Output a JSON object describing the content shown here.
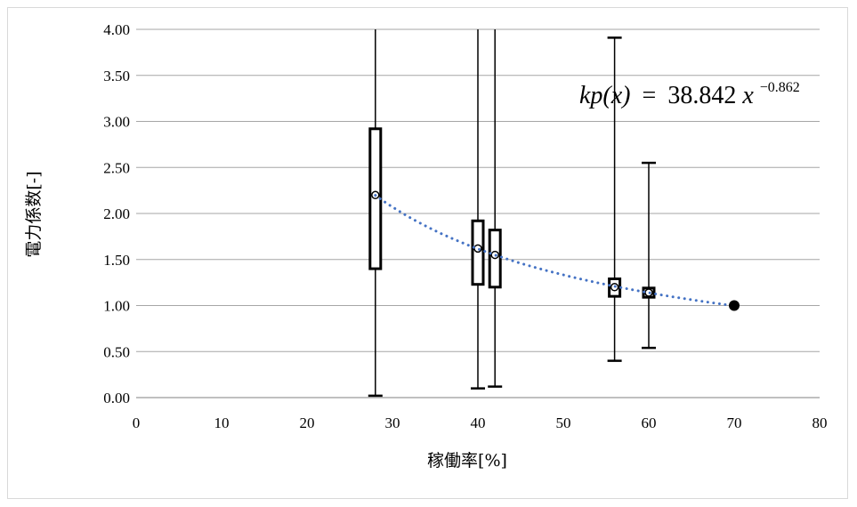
{
  "chart_data": {
    "type": "boxplot",
    "title": "",
    "xlabel": "稼働率[%]",
    "ylabel": "電力係数[-]",
    "xlim": [
      0,
      80
    ],
    "ylim": [
      0,
      4
    ],
    "x_ticks": [
      "0",
      "10",
      "20",
      "30",
      "40",
      "50",
      "60",
      "70",
      "80"
    ],
    "y_ticks": [
      "0.00",
      "0.50",
      "1.00",
      "1.50",
      "2.00",
      "2.50",
      "3.00",
      "3.50",
      "4.00"
    ],
    "grid": "horizontal",
    "colors": {
      "trend": "#4472c4",
      "box": "#000000",
      "grid": "#a6a6a6"
    },
    "boxes": [
      {
        "x": 28,
        "min": 0.02,
        "q1": 1.4,
        "median": 2.2,
        "q3": 2.92,
        "max": 4.0
      },
      {
        "x": 40,
        "min": 0.1,
        "q1": 1.23,
        "median": 1.62,
        "q3": 1.92,
        "max": 4.0
      },
      {
        "x": 42,
        "min": 0.12,
        "q1": 1.2,
        "median": 1.55,
        "q3": 1.82,
        "max": 4.0
      },
      {
        "x": 56,
        "min": 0.4,
        "q1": 1.1,
        "median": 1.2,
        "q3": 1.29,
        "max": 3.91
      },
      {
        "x": 60,
        "min": 0.54,
        "q1": 1.09,
        "median": 1.14,
        "q3": 1.19,
        "max": 2.55
      }
    ],
    "reference_point": {
      "x": 70,
      "y": 1.0
    },
    "trendline": {
      "type": "power",
      "coefficient": 38.842,
      "exponent": -0.862,
      "x_from": 28,
      "x_to": 70
    },
    "equation": {
      "lhs": "kp(x)",
      "equals": "=",
      "coef": "38.842",
      "var": "x",
      "exp": "−0.862"
    }
  }
}
